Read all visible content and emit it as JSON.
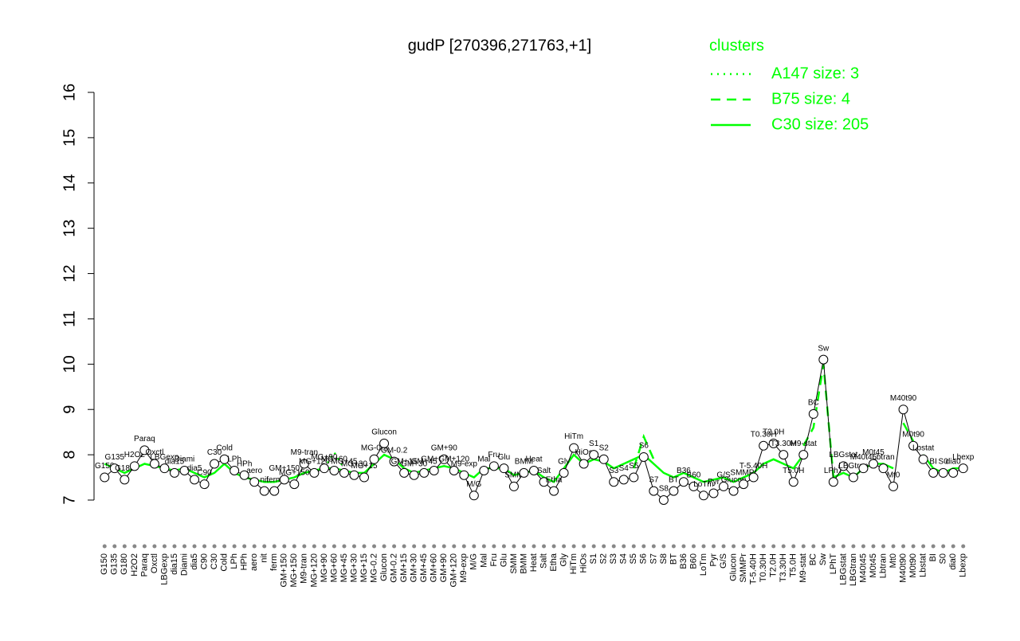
{
  "chart_data": {
    "type": "line",
    "title": "gudP [270396,271763,+1]",
    "legend_title": "clusters",
    "legend_color": "#00ff00",
    "color": "#000000",
    "categories": [
      "G150",
      "G135",
      "G180",
      "H2O2",
      "Paraq",
      "Oxctl",
      "LBGexp",
      "dia15",
      "Diami",
      "dia5",
      "C90",
      "C30",
      "Cold",
      "LPh",
      "HPh",
      "aero",
      "nit",
      "ferm",
      "GM+150",
      "MG+150",
      "M9-tran",
      "MG+120",
      "MG+90",
      "MG+60",
      "MG+45",
      "MG+30",
      "MG+15",
      "MG-0.2",
      "Glucon",
      "GM-0.2",
      "GM+15",
      "GM+30",
      "GM+45",
      "GM+60",
      "GM+90",
      "GM+120",
      "M9-exp",
      "M/G",
      "Mal",
      "Fru",
      "Glu",
      "SMM",
      "BMM",
      "Heat",
      "Salt",
      "Etha",
      "Gly",
      "HiTm",
      "HiOs",
      "S1",
      "S2",
      "S3",
      "S4",
      "S5",
      "S6",
      "S7",
      "S8",
      "BT",
      "B36",
      "B60",
      "LoTm",
      "Pyr",
      "G/S",
      "Glucon",
      "SMMPr",
      "T-5.40H",
      "T0.30H",
      "T2.0H",
      "T3.30H",
      "T5.0H",
      "M9-stat",
      "BC",
      "Sw",
      "LPhT",
      "LBGstat",
      "LBGtran",
      "M40t45",
      "M0t45",
      "Lbtran",
      "Mt0",
      "M40t90",
      "M0t90",
      "Lbstat",
      "BI",
      "S0",
      "dia0",
      "Lbexp"
    ],
    "values": [
      7.5,
      7.7,
      7.45,
      7.75,
      8.1,
      7.8,
      7.7,
      7.6,
      7.65,
      7.45,
      7.35,
      7.8,
      7.9,
      7.65,
      7.55,
      7.4,
      7.2,
      7.2,
      7.45,
      7.35,
      7.8,
      7.6,
      7.7,
      7.65,
      7.6,
      7.55,
      7.5,
      7.9,
      8.25,
      7.85,
      7.6,
      7.55,
      7.6,
      7.65,
      7.9,
      7.65,
      7.55,
      7.1,
      7.65,
      7.75,
      7.7,
      7.3,
      7.6,
      7.65,
      7.4,
      7.2,
      7.6,
      8.15,
      7.8,
      8.0,
      7.9,
      7.4,
      7.45,
      7.5,
      7.95,
      7.2,
      7.0,
      7.2,
      7.4,
      7.3,
      7.1,
      7.15,
      7.3,
      7.2,
      7.35,
      7.5,
      8.2,
      8.25,
      8.0,
      7.4,
      8.0,
      8.9,
      10.1,
      7.4,
      7.75,
      7.5,
      7.7,
      7.8,
      7.7,
      7.3,
      9.0,
      8.2,
      7.9,
      7.6,
      7.6,
      7.6,
      7.7
    ],
    "series": [
      {
        "name": "A147 size: 3",
        "color": "#00ff00",
        "line_style": "dotted",
        "values": [
          null,
          null,
          null,
          null,
          null,
          null,
          null,
          null,
          null,
          null,
          null,
          null,
          null,
          null,
          null,
          null,
          null,
          null,
          null,
          null,
          null,
          null,
          7.7,
          8.05,
          7.7,
          null,
          null,
          null,
          null,
          null,
          null,
          null,
          null,
          null,
          null,
          null,
          null,
          null,
          null,
          null,
          null,
          null,
          null,
          null,
          null,
          null,
          null,
          null,
          null,
          null,
          null,
          null,
          null,
          null,
          null,
          null,
          null,
          null,
          null,
          null,
          null,
          null,
          null,
          null,
          null,
          null,
          null,
          null,
          null,
          null,
          null,
          null,
          null,
          null,
          null,
          null,
          null,
          null,
          null,
          null,
          null,
          null,
          null,
          null,
          null,
          null,
          null
        ]
      },
      {
        "name": "B75 size: 4",
        "color": "#00ff00",
        "line_style": "dashed",
        "values": [
          null,
          null,
          null,
          null,
          null,
          null,
          null,
          null,
          null,
          null,
          null,
          null,
          null,
          null,
          null,
          null,
          null,
          null,
          null,
          null,
          null,
          null,
          null,
          null,
          null,
          null,
          null,
          null,
          null,
          null,
          null,
          null,
          null,
          null,
          null,
          null,
          null,
          null,
          null,
          null,
          null,
          null,
          null,
          null,
          null,
          null,
          null,
          null,
          null,
          null,
          null,
          null,
          null,
          7.7,
          8.4,
          7.9,
          null,
          null,
          null,
          null,
          null,
          null,
          null,
          null,
          null,
          null,
          null,
          null,
          null,
          null,
          8.2,
          8.6,
          10.0,
          7.5,
          null,
          null,
          null,
          null,
          null,
          null,
          8.7,
          8.3,
          null,
          null,
          null,
          null,
          null
        ]
      },
      {
        "name": "C30 size: 205",
        "color": "#00ff00",
        "line_style": "solid",
        "values": [
          7.8,
          7.7,
          7.6,
          7.7,
          7.8,
          7.75,
          7.7,
          7.65,
          7.7,
          7.6,
          7.5,
          7.6,
          7.8,
          7.6,
          7.5,
          7.45,
          7.4,
          7.4,
          7.45,
          7.5,
          7.6,
          7.65,
          7.7,
          7.7,
          7.65,
          7.6,
          7.6,
          7.8,
          8.0,
          7.9,
          7.7,
          7.6,
          7.65,
          7.7,
          7.75,
          7.7,
          7.6,
          7.5,
          7.7,
          7.7,
          7.7,
          7.55,
          7.6,
          7.65,
          7.5,
          7.4,
          7.7,
          8.0,
          7.8,
          7.9,
          7.85,
          7.7,
          7.8,
          7.9,
          8.0,
          7.8,
          7.6,
          7.5,
          7.6,
          7.5,
          7.4,
          7.45,
          7.5,
          7.4,
          7.5,
          7.6,
          7.8,
          7.9,
          7.8,
          7.7,
          8.0,
          null,
          null,
          7.5,
          7.6,
          7.5,
          7.7,
          7.8,
          7.8,
          7.7,
          null,
          null,
          8.0,
          7.7,
          7.6,
          7.7,
          7.7
        ]
      }
    ],
    "ylim": [
      7,
      16
    ],
    "yticks": [
      7,
      8,
      9,
      10,
      11,
      12,
      13,
      14,
      15,
      16
    ]
  }
}
